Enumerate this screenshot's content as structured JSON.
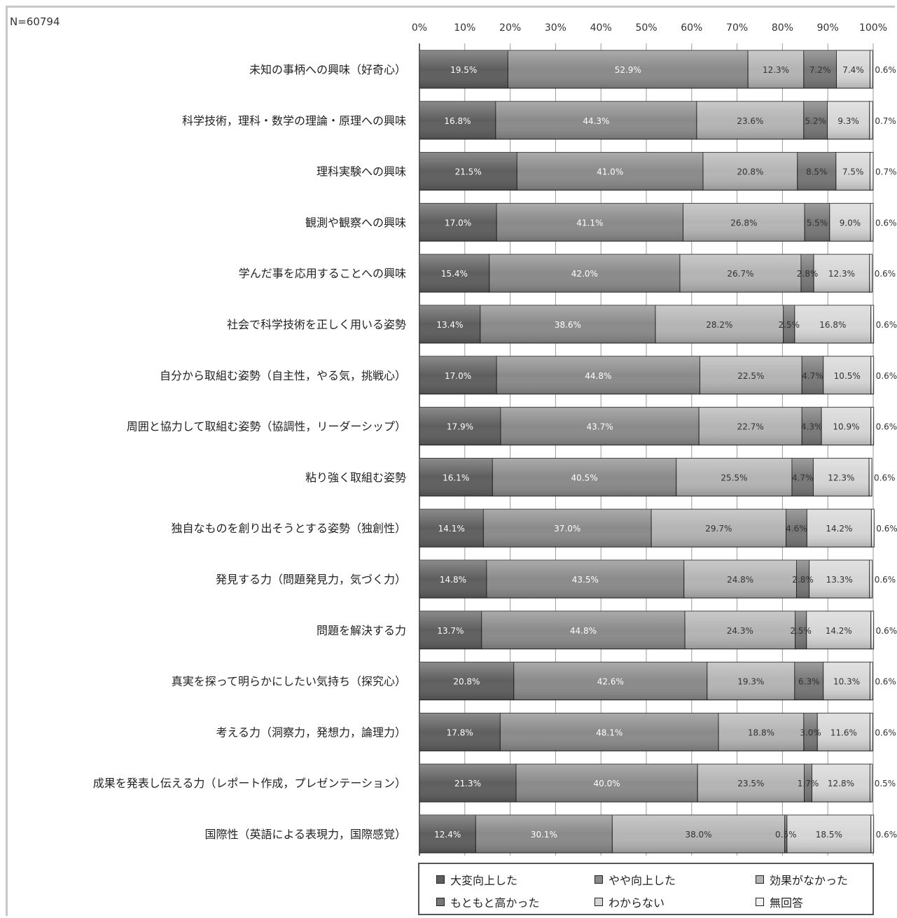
{
  "n_label": "N=60794",
  "chart_data": {
    "type": "bar",
    "orientation": "horizontal",
    "stacked": "100%",
    "xlim": [
      0,
      100
    ],
    "x_ticks": [
      "0%",
      "10%",
      "20%",
      "30%",
      "40%",
      "50%",
      "60%",
      "70%",
      "80%",
      "90%",
      "100%"
    ],
    "grid": true,
    "legend_position": "bottom",
    "categories": [
      "未知の事柄への興味（好奇心）",
      "科学技術，理科・数学の理論・原理への興味",
      "理科実験への興味",
      "観測や観察への興味",
      "学んだ事を応用することへの興味",
      "社会で科学技術を正しく用いる姿勢",
      "自分から取組む姿勢（自主性，やる気，挑戦心）",
      "周囲と協力して取組む姿勢（協調性，リーダーシップ）",
      "粘り強く取組む姿勢",
      "独自なものを創り出そうとする姿勢（独創性）",
      "発見する力（問題発見力，気づく力）",
      "問題を解決する力",
      "真実を探って明らかにしたい気持ち（探究心）",
      "考える力（洞察力，発想力，論理力）",
      "成果を発表し伝える力（レポート作成，プレゼンテーション）",
      "国際性（英語による表現力，国際感覚）"
    ],
    "series": [
      {
        "name": "大変向上した",
        "color": "#5e5e5e",
        "values": [
          19.5,
          16.8,
          21.5,
          17.0,
          15.4,
          13.4,
          17.0,
          17.9,
          16.1,
          14.1,
          14.8,
          13.7,
          20.8,
          17.8,
          21.3,
          12.4
        ],
        "labels": [
          "19.5%",
          "16.8%",
          "21.5%",
          "17.0%",
          "15.4%",
          "13.4%",
          "17.0%",
          "17.9%",
          "16.1%",
          "14.1%",
          "14.8%",
          "13.7%",
          "20.8%",
          "17.8%",
          "21.3%",
          "12.4%"
        ]
      },
      {
        "name": "やや向上した",
        "color": "#8a8a8a",
        "values": [
          52.9,
          44.3,
          41.0,
          41.1,
          42.0,
          38.6,
          44.8,
          43.7,
          40.5,
          37.0,
          43.5,
          44.8,
          42.6,
          48.1,
          40.0,
          30.1
        ],
        "labels": [
          "52.9%",
          "44.3%",
          "41.0%",
          "41.1%",
          "42.0%",
          "38.6%",
          "44.8%",
          "43.7%",
          "40.5%",
          "37.0%",
          "43.5%",
          "44.8%",
          "42.6%",
          "48.1%",
          "40.0%",
          "30.1%"
        ]
      },
      {
        "name": "効果がなかった",
        "color": "#b4b4b4",
        "values": [
          12.3,
          23.6,
          20.8,
          26.8,
          26.7,
          28.2,
          22.5,
          22.7,
          25.5,
          29.7,
          24.8,
          24.3,
          19.3,
          18.8,
          23.5,
          38.0
        ],
        "labels": [
          "12.3%",
          "23.6%",
          "20.8%",
          "26.8%",
          "26.7%",
          "28.2%",
          "22.5%",
          "22.7%",
          "25.5%",
          "29.7%",
          "24.8%",
          "24.3%",
          "19.3%",
          "18.8%",
          "23.5%",
          "38.0%"
        ]
      },
      {
        "name": "もともと高かった",
        "color": "#777777",
        "values": [
          7.2,
          5.2,
          8.5,
          5.5,
          2.8,
          2.5,
          4.7,
          4.3,
          4.7,
          4.6,
          2.8,
          2.5,
          6.3,
          3.0,
          1.7,
          0.5
        ],
        "labels": [
          "7.2%",
          "5.2%",
          "8.5%",
          "5.5%",
          "2.8%",
          "2.5%",
          "4.7%",
          "4.3%",
          "4.7%",
          "4.6%",
          "2.8%",
          "2.5%",
          "6.3%",
          "3.0%",
          "1.7%",
          "0.5%"
        ]
      },
      {
        "name": "わからない",
        "color": "#d6d6d6",
        "values": [
          7.4,
          9.3,
          7.5,
          9.0,
          12.3,
          16.8,
          10.5,
          10.9,
          12.3,
          14.2,
          13.3,
          14.2,
          10.3,
          11.6,
          12.8,
          18.5
        ],
        "labels": [
          "7.4%",
          "9.3%",
          "7.5%",
          "9.0%",
          "12.3%",
          "16.8%",
          "10.5%",
          "10.9%",
          "12.3%",
          "14.2%",
          "13.3%",
          "14.2%",
          "10.3%",
          "11.6%",
          "12.8%",
          "18.5%"
        ]
      },
      {
        "name": "無回答",
        "color": "#f2f2f2",
        "values": [
          0.6,
          0.7,
          0.7,
          0.6,
          0.6,
          0.6,
          0.6,
          0.6,
          0.6,
          0.6,
          0.6,
          0.6,
          0.6,
          0.6,
          0.5,
          0.6
        ],
        "labels": [
          "0.6%",
          "0.7%",
          "0.7%",
          "0.6%",
          "0.6%",
          "0.6%",
          "0.6%",
          "0.6%",
          "0.6%",
          "0.6%",
          "0.6%",
          "0.6%",
          "0.6%",
          "0.6%",
          "0.5%",
          "0.6%"
        ]
      }
    ]
  }
}
